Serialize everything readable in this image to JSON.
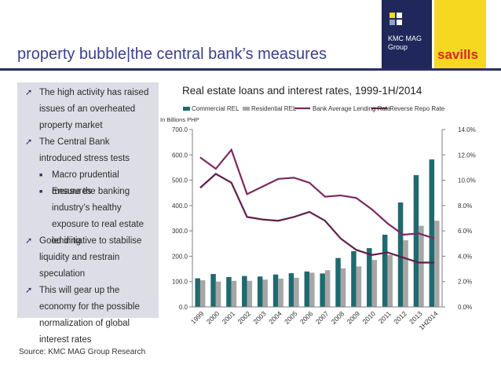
{
  "slide": {
    "title": "property bubble|the central bank’s measures",
    "source": "Source: KMC MAG Group Research"
  },
  "logos": {
    "kmc": {
      "line1": "KMC MAG",
      "line2": "Group",
      "colors": [
        "#f6d820",
        "#ffffff",
        "#8fa3c9",
        "#ffffff"
      ]
    },
    "savills": {
      "text": "savills"
    }
  },
  "colors": {
    "accent": "#2a2d66",
    "title": "#3b3f8c",
    "panel": "#dcdde6"
  },
  "bullets": [
    {
      "level": 1,
      "text": "The high activity has raised issues of an overheated property market"
    },
    {
      "level": 1,
      "text": "The Central Bank introduced stress tests"
    },
    {
      "level": 2,
      "text": "Macro prudential measures"
    },
    {
      "level": 2,
      "text": "Ensure the banking industry’s healthy exposure to real estate lending"
    },
    {
      "level": 1,
      "text": "Good initiative to stabilise liquidity and restrain speculation"
    },
    {
      "level": 1,
      "text": "This will gear up the economy for the possible normalization of global interest rates"
    }
  ],
  "chart_data": {
    "type": "bar",
    "title": "Real estate loans and interest rates, 1999-1H/2014",
    "ylabel": "In Billions PHP",
    "categories": [
      "1999",
      "2000",
      "2001",
      "2002",
      "2003",
      "2004",
      "2005",
      "2006",
      "2007",
      "2008",
      "2009",
      "2010",
      "2011",
      "2012",
      "2013",
      "1H2014"
    ],
    "ylim": [
      0,
      700
    ],
    "yticks": [
      "0.0",
      "100.0",
      "200.0",
      "300.0",
      "400.0",
      "500.0",
      "600.0",
      "700.0"
    ],
    "y2lim": [
      0,
      14
    ],
    "y2ticks": [
      "0.0%",
      "2.0%",
      "4.0%",
      "6.0%",
      "8.0%",
      "10.0%",
      "12.0%",
      "14.0%"
    ],
    "legend_position": "top",
    "grid": false,
    "series": [
      {
        "name": "Commercial REL",
        "type": "bar",
        "axis": "left",
        "color": "#1f6a6e",
        "values": [
          113,
          130,
          118,
          122,
          120,
          128,
          133,
          140,
          132,
          193,
          220,
          232,
          285,
          412,
          520,
          582
        ]
      },
      {
        "name": "Residential REL",
        "type": "bar",
        "axis": "left",
        "color": "#a6a6a6",
        "values": [
          105,
          100,
          103,
          103,
          108,
          112,
          115,
          135,
          145,
          152,
          160,
          185,
          205,
          263,
          320,
          340
        ]
      },
      {
        "name": "Bank Average Lending Rate",
        "type": "line",
        "axis": "right",
        "color": "#7b2a5f",
        "values": [
          11.8,
          10.9,
          12.4,
          8.9,
          9.5,
          10.1,
          10.2,
          9.8,
          8.7,
          8.8,
          8.6,
          7.7,
          6.6,
          5.7,
          5.8,
          5.4
        ]
      },
      {
        "name": "Reverse Repo Rate",
        "type": "line",
        "axis": "right",
        "color": "#5e1f4c",
        "values": [
          9.4,
          10.5,
          9.8,
          7.1,
          6.9,
          6.8,
          7.1,
          7.5,
          6.8,
          5.4,
          4.5,
          4.1,
          4.3,
          3.9,
          3.5,
          3.5
        ]
      }
    ]
  }
}
